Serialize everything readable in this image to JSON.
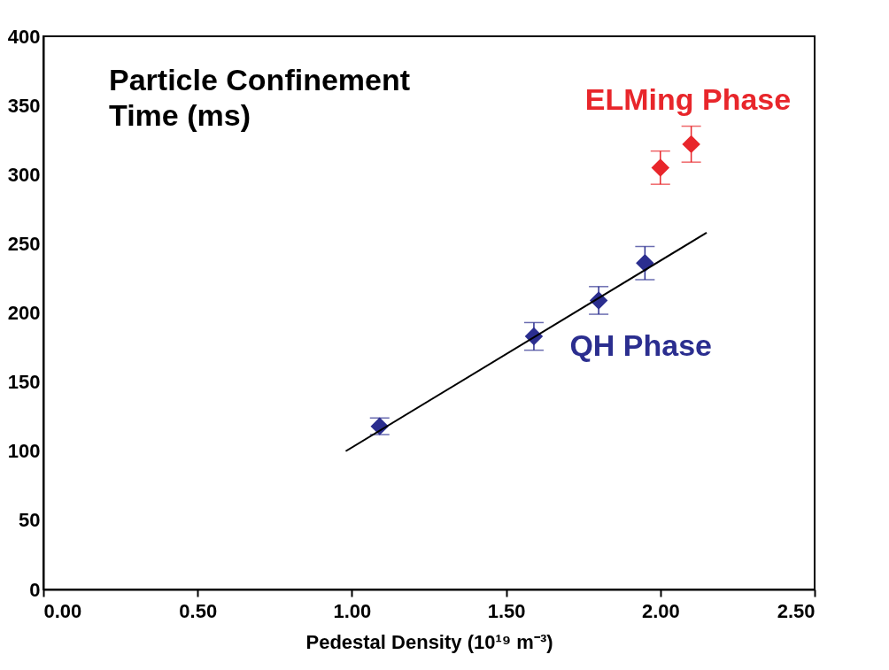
{
  "chart_data": {
    "type": "scatter",
    "ylabel": "Particle Confinement\nTime (ms)",
    "xlabel": "Pedestal Density (10¹⁹ m⁻³)",
    "xlim": [
      0,
      2.5
    ],
    "ylim": [
      0,
      400
    ],
    "xticks": [
      {
        "value": 0,
        "label": "0.00"
      },
      {
        "value": 0.5,
        "label": "0.50"
      },
      {
        "value": 1,
        "label": "1.00"
      },
      {
        "value": 1.5,
        "label": "1.50"
      },
      {
        "value": 2,
        "label": "2.00"
      },
      {
        "value": 2.5,
        "label": "2.50"
      }
    ],
    "yticks": [
      0,
      50,
      100,
      150,
      200,
      250,
      300,
      350,
      400
    ],
    "grid": false,
    "marker": "diamond",
    "series": [
      {
        "name": "QH Phase",
        "color": "#2b2e8f",
        "x": [
          1.09,
          1.59,
          1.8,
          1.95
        ],
        "values": [
          118,
          183,
          209,
          236
        ],
        "errors": [
          6,
          10,
          10,
          12
        ]
      },
      {
        "name": "ELMing Phase",
        "color": "#e8262b",
        "x": [
          2.0,
          2.1
        ],
        "values": [
          305,
          322
        ],
        "errors": [
          12,
          13
        ]
      },
      {
        "type": "line",
        "color": "#000000",
        "x": [
          0.98,
          2.15
        ],
        "values": [
          100,
          258
        ],
        "marker": "none"
      }
    ]
  }
}
